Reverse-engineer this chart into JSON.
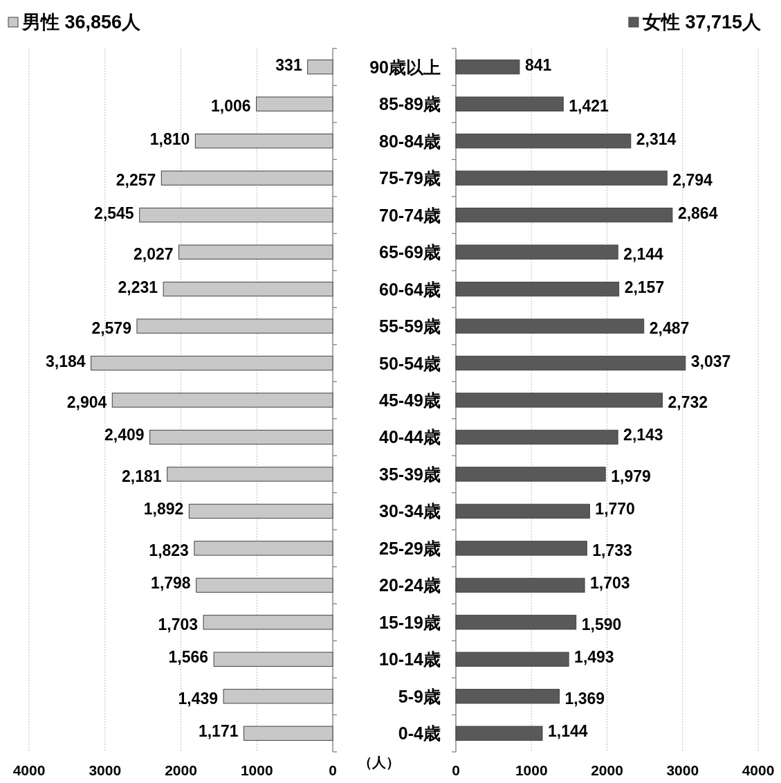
{
  "chart_data": [
    {
      "type": "bar",
      "orientation": "horizontal",
      "categories": [
        null,
        null,
        null,
        null,
        null,
        null,
        null,
        null,
        null,
        null,
        null,
        null,
        null,
        null,
        null,
        null,
        null,
        null,
        null
      ],
      "series": [
        {
          "name": "男性 36,856人",
          "color": "#c8c8c8",
          "values": [
            331,
            1006,
            1810,
            2257,
            2545,
            2027,
            2231,
            2579,
            3184,
            2904,
            2409,
            2181,
            1892,
            1823,
            1798,
            1703,
            1566,
            1439,
            1171
          ],
          "value_labels": [
            "331",
            "1,006",
            "1,810",
            "2,257",
            "2,545",
            "2,027",
            "2,231",
            "2,579",
            "3,184",
            "2,904",
            "2,409",
            "2,181",
            "1,892",
            "1,823",
            "1,798",
            "1,703",
            "1,566",
            "1,439",
            "1,171"
          ]
        }
      ],
      "xlim": [
        4000,
        0
      ],
      "xticks": [
        4000,
        3000,
        2000,
        1000,
        0
      ],
      "grid": "x",
      "legend": "top left",
      "tick_labels": "x",
      "annotations": [
        "（人）"
      ]
    },
    {
      "type": "bar",
      "orientation": "horizontal",
      "categories": [
        "90歳以上",
        "85-89歳",
        "80-84歳",
        "75-79歳",
        "70-74歳",
        "65-69歳",
        "60-64歳",
        "55-59歳",
        "50-54歳",
        "45-49歳",
        "40-44歳",
        "35-39歳",
        "30-34歳",
        "25-29歳",
        "20-24歳",
        "15-19歳",
        "10-14歳",
        "5-9歳",
        "0-4歳"
      ],
      "series": [
        {
          "name": "女性 37,715人",
          "color": "#595959",
          "values": [
            841,
            1421,
            2314,
            2794,
            2864,
            2144,
            2157,
            2487,
            3037,
            2732,
            2143,
            1979,
            1770,
            1733,
            1703,
            1590,
            1493,
            1369,
            1144
          ],
          "value_labels": [
            "841",
            "1,421",
            "2,314",
            "2,794",
            "2,864",
            "2,144",
            "2,157",
            "2,487",
            "3,037",
            "2,732",
            "2,143",
            "1,979",
            "1,770",
            "1,733",
            "1,703",
            "1,590",
            "1,493",
            "1,369",
            "1,144"
          ]
        }
      ],
      "xlim": [
        0,
        4000
      ],
      "xticks": [
        0,
        1000,
        2000,
        3000,
        4000
      ],
      "grid": "x",
      "legend": "top right"
    }
  ]
}
